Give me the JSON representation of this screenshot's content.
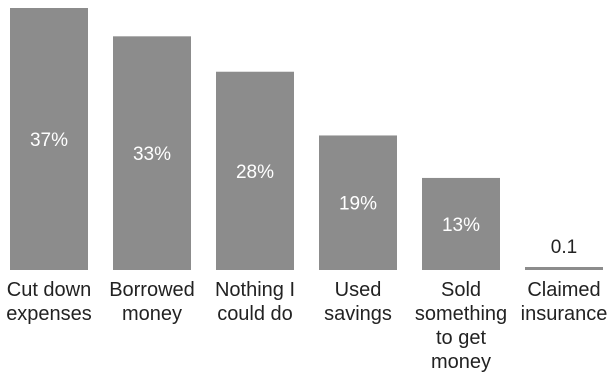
{
  "chart_data": {
    "type": "bar",
    "title": "",
    "xlabel": "",
    "ylabel": "",
    "ylim": [
      0,
      37
    ],
    "grid": false,
    "legend": "none",
    "bar_color": "#8c8c8c",
    "inside_label_color": "#ffffff",
    "outside_label_color": "#222222",
    "categories": [
      [
        "Cut down",
        "expenses"
      ],
      [
        "Borrowed",
        "money"
      ],
      [
        "Nothing I",
        "could do"
      ],
      [
        "Used",
        "savings"
      ],
      [
        "Sold",
        "something",
        "to get",
        "money"
      ],
      [
        "Claimed",
        "insurance"
      ]
    ],
    "values": [
      37,
      33,
      28,
      19,
      13,
      0.1
    ],
    "data_labels": [
      "37%",
      "33%",
      "28%",
      "19%",
      "13%",
      "0.1"
    ]
  }
}
